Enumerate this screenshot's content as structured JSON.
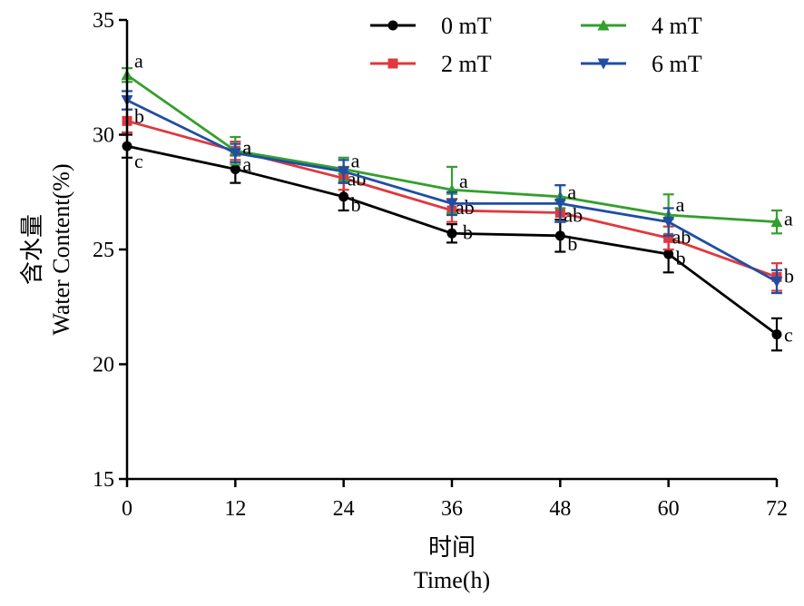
{
  "chart_data": {
    "type": "line",
    "title": "",
    "xlabel_cn": "时间",
    "xlabel": "Time(h)",
    "ylabel_cn": "含水量",
    "ylabel": "Water Content(%)",
    "x": [
      0,
      12,
      24,
      36,
      48,
      60,
      72
    ],
    "xticks": [
      "0",
      "12",
      "24",
      "36",
      "48",
      "60",
      "72"
    ],
    "ylim": [
      15,
      35
    ],
    "yticks": [
      "15",
      "20",
      "25",
      "30",
      "35"
    ],
    "legend_position": "top-right",
    "series": [
      {
        "name": "0 mT",
        "color": "#000000",
        "marker": "circle",
        "values": [
          29.5,
          28.5,
          27.3,
          25.7,
          25.6,
          24.8,
          21.3
        ],
        "errors": [
          0.5,
          0.6,
          0.6,
          0.4,
          0.7,
          0.8,
          0.7
        ],
        "letters": [
          "c",
          "a",
          "b",
          "b",
          "b",
          "b",
          "c"
        ]
      },
      {
        "name": "2 mT",
        "color": "#e0383e",
        "marker": "square",
        "values": [
          30.6,
          29.3,
          28.1,
          26.7,
          26.6,
          25.5,
          23.8
        ],
        "errors": [
          0.5,
          0.4,
          0.5,
          0.5,
          0.4,
          0.5,
          0.6
        ],
        "letters": [
          "b",
          "a",
          "ab",
          "ab",
          "ab",
          "ab",
          "b"
        ]
      },
      {
        "name": "4 mT",
        "color": "#33a02c",
        "marker": "triangle-up",
        "values": [
          32.6,
          29.3,
          28.5,
          27.6,
          27.3,
          26.5,
          26.2
        ],
        "errors": [
          0.3,
          0.6,
          0.5,
          1.0,
          0.5,
          0.9,
          0.5
        ],
        "letters": [
          "a",
          "a",
          "a",
          "a",
          "a",
          "a",
          "a"
        ]
      },
      {
        "name": "6 mT",
        "color": "#1f4ea3",
        "marker": "triangle-down",
        "values": [
          31.5,
          29.2,
          28.4,
          27.0,
          27.0,
          26.2,
          23.6
        ],
        "errors": [
          0.4,
          0.4,
          0.5,
          0.5,
          0.8,
          0.6,
          0.5
        ],
        "letters": [],
        "letter_text": ""
      }
    ]
  }
}
